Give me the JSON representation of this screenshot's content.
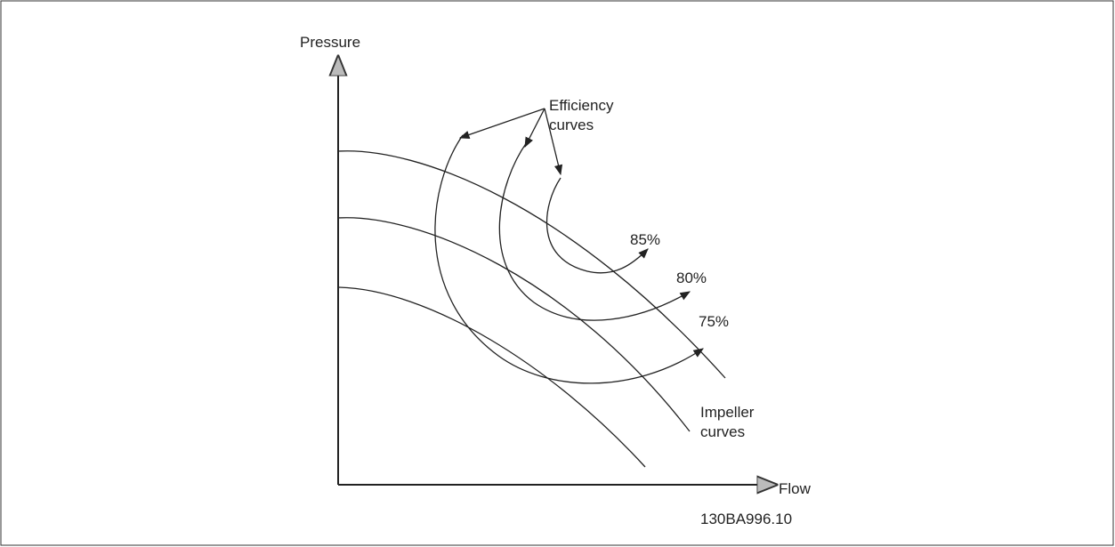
{
  "axes": {
    "y_label": "Pressure",
    "x_label": "Flow"
  },
  "efficiency_label": [
    "Efficiency",
    "curves"
  ],
  "efficiency_curves": [
    {
      "label": "85%"
    },
    {
      "label": "80%"
    },
    {
      "label": "75%"
    }
  ],
  "impeller_label": [
    "Impeller",
    "curves"
  ],
  "reference": "130BA996.10"
}
